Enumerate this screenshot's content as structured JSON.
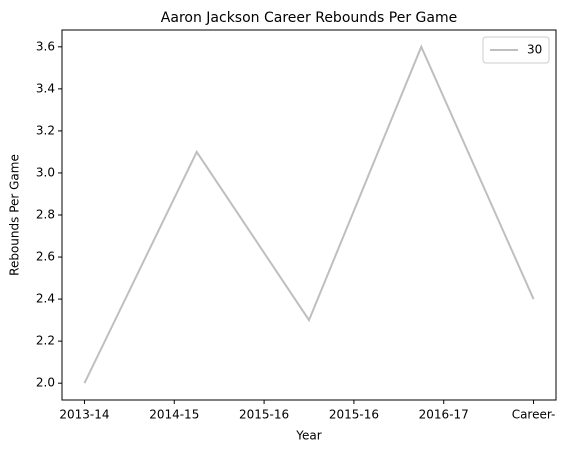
{
  "chart_data": {
    "type": "line",
    "title": "Aaron Jackson  Career Rebounds Per Game",
    "xlabel": "Year",
    "ylabel": "Rebounds Per Game",
    "x": [
      0,
      1,
      2,
      3,
      4
    ],
    "series": [
      {
        "name": "30",
        "color": "#bfbfbf",
        "values": [
          2.0,
          3.1,
          2.3,
          3.6,
          2.4
        ]
      }
    ],
    "xlim": [
      -0.2,
      4.2
    ],
    "xticks": [
      {
        "value": 0,
        "label": "2013-14"
      },
      {
        "value": 0.8,
        "label": "2014-15"
      },
      {
        "value": 1.6,
        "label": "2015-16"
      },
      {
        "value": 2.4,
        "label": "2015-16"
      },
      {
        "value": 3.2,
        "label": "2016-17"
      },
      {
        "value": 4.0,
        "label": "Career-"
      }
    ],
    "ylim": [
      1.92,
      3.68
    ],
    "yticks": [
      {
        "value": 2.0,
        "label": "2.0"
      },
      {
        "value": 2.2,
        "label": "2.2"
      },
      {
        "value": 2.4,
        "label": "2.4"
      },
      {
        "value": 2.6,
        "label": "2.6"
      },
      {
        "value": 2.8,
        "label": "2.8"
      },
      {
        "value": 3.0,
        "label": "3.0"
      },
      {
        "value": 3.2,
        "label": "3.2"
      },
      {
        "value": 3.4,
        "label": "3.4"
      },
      {
        "value": 3.6,
        "label": "3.6"
      }
    ],
    "grid": false,
    "legend": "upper right"
  }
}
